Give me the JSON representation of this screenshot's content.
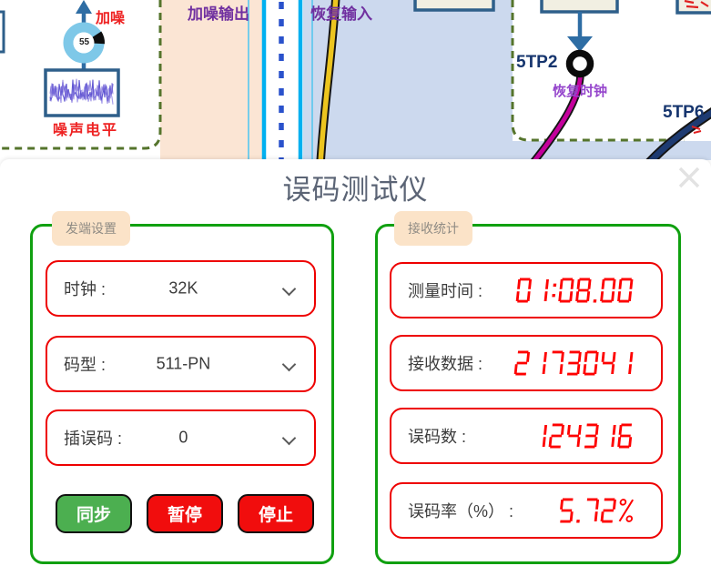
{
  "colors": {
    "panel_border_green": "#10a010",
    "row_border_red": "#ee0000",
    "digital_red": "#fe0100",
    "legend_bg_peach": "#fbe3c8",
    "button_green": "#4caf50",
    "button_red": "#f10d0d",
    "diagram_purple": "#7030a0",
    "tp_navy": "#16356e",
    "diagram_red": "#ee2222",
    "cable_yellow": "#ecc51f",
    "cable_magenta": "#c4009c",
    "cable_navy": "#1e3b72"
  },
  "diagram": {
    "noise_knob_value": "55",
    "add_noise_label": "加噪",
    "noise_level_label": "噪声电平",
    "noise_output_label": "加噪输出",
    "recover_input_label": "恢复输入",
    "tp2_label": "5TP2",
    "recover_clock_label": "恢复时钟",
    "tp6_label": "5TP6"
  },
  "dialog": {
    "title": "误码测试仪",
    "tx_panel": {
      "legend": "发端设置",
      "rows": [
        {
          "label": "时钟 :",
          "value": "32K"
        },
        {
          "label": "码型 :",
          "value": "511-PN"
        },
        {
          "label": "插误码 :",
          "value": "0"
        }
      ],
      "buttons": [
        {
          "label": "同步"
        },
        {
          "label": "暂停"
        },
        {
          "label": "停止"
        }
      ]
    },
    "rx_panel": {
      "legend": "接收统计",
      "rows": [
        {
          "label": "测量时间 :",
          "value": "01:08.00"
        },
        {
          "label": "接收数据 :",
          "value": "2173041"
        },
        {
          "label": "误码数 :",
          "value": "124316"
        },
        {
          "label": "误码率（%） :",
          "value": "5.72%"
        }
      ]
    }
  }
}
